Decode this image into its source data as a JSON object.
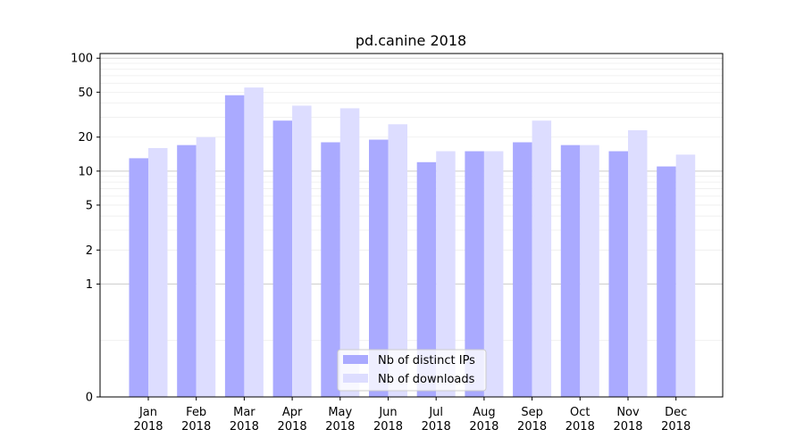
{
  "chart_data": {
    "type": "bar",
    "title": "pd.canine 2018",
    "xlabel": "",
    "ylabel": "",
    "yscale": "symlog",
    "ylim": [
      0,
      110
    ],
    "yticks": [
      0,
      1,
      2,
      5,
      10,
      20,
      50,
      100
    ],
    "ytick_labels": [
      "0",
      "1",
      "2",
      "5",
      "10",
      "20",
      "50",
      "100"
    ],
    "categories": [
      {
        "month": "Jan",
        "year": "2018"
      },
      {
        "month": "Feb",
        "year": "2018"
      },
      {
        "month": "Mar",
        "year": "2018"
      },
      {
        "month": "Apr",
        "year": "2018"
      },
      {
        "month": "May",
        "year": "2018"
      },
      {
        "month": "Jun",
        "year": "2018"
      },
      {
        "month": "Jul",
        "year": "2018"
      },
      {
        "month": "Aug",
        "year": "2018"
      },
      {
        "month": "Sep",
        "year": "2018"
      },
      {
        "month": "Oct",
        "year": "2018"
      },
      {
        "month": "Nov",
        "year": "2018"
      },
      {
        "month": "Dec",
        "year": "2018"
      }
    ],
    "series": [
      {
        "name": "Nb of distinct IPs",
        "color": "#aaaaff",
        "values": [
          13,
          17,
          47,
          28,
          18,
          19,
          12,
          15,
          18,
          17,
          15,
          11
        ]
      },
      {
        "name": "Nb of downloads",
        "color": "#ddddff",
        "values": [
          16,
          20,
          55,
          38,
          36,
          26,
          15,
          15,
          28,
          17,
          23,
          14
        ]
      }
    ],
    "grid": true,
    "legend": "lower-center"
  }
}
